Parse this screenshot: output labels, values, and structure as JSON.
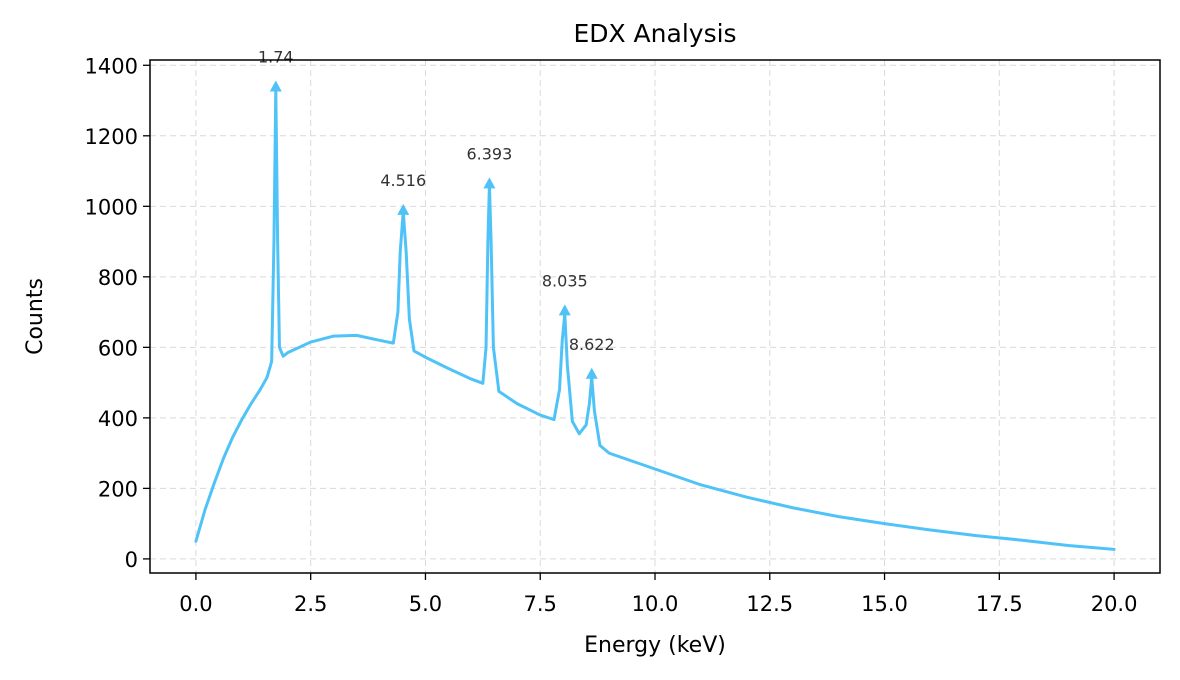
{
  "chart_data": {
    "type": "line",
    "title": "EDX Analysis",
    "xlabel": "Energy (keV)",
    "ylabel": "Counts",
    "xlim": [
      -1,
      21
    ],
    "ylim": [
      -40,
      1415
    ],
    "grid": true,
    "line_color": "#4fc3f7",
    "xticks": [
      0.0,
      2.5,
      5.0,
      7.5,
      10.0,
      12.5,
      15.0,
      17.5,
      20.0
    ],
    "xtick_labels": [
      "0.0",
      "2.5",
      "5.0",
      "7.5",
      "10.0",
      "12.5",
      "15.0",
      "17.5",
      "20.0"
    ],
    "yticks": [
      0,
      200,
      400,
      600,
      800,
      1000,
      1200,
      1400
    ],
    "ytick_labels": [
      "0",
      "200",
      "400",
      "600",
      "800",
      "1000",
      "1200",
      "1400"
    ],
    "series": [
      {
        "name": "Spectrum",
        "x": [
          0.0,
          0.2,
          0.4,
          0.6,
          0.8,
          1.0,
          1.2,
          1.4,
          1.55,
          1.65,
          1.7,
          1.74,
          1.78,
          1.82,
          1.9,
          2.0,
          2.5,
          3.0,
          3.5,
          4.0,
          4.3,
          4.4,
          4.45,
          4.516,
          4.58,
          4.65,
          4.75,
          5.0,
          5.5,
          6.0,
          6.25,
          6.32,
          6.36,
          6.393,
          6.43,
          6.48,
          6.6,
          7.0,
          7.5,
          7.8,
          7.92,
          7.98,
          8.035,
          8.09,
          8.2,
          8.35,
          8.5,
          8.57,
          8.622,
          8.68,
          8.8,
          9.0,
          10.0,
          11.0,
          12.0,
          13.0,
          14.0,
          15.0,
          16.0,
          17.0,
          18.0,
          19.0,
          20.0
        ],
        "y": [
          50,
          140,
          215,
          285,
          345,
          395,
          440,
          480,
          515,
          560,
          900,
          1330,
          900,
          600,
          575,
          585,
          615,
          632,
          634,
          620,
          612,
          700,
          870,
          985,
          870,
          680,
          590,
          572,
          540,
          510,
          498,
          600,
          900,
          1060,
          900,
          600,
          475,
          440,
          408,
          395,
          480,
          620,
          695,
          550,
          390,
          355,
          380,
          440,
          515,
          420,
          322,
          300,
          255,
          210,
          175,
          145,
          120,
          100,
          82,
          66,
          53,
          38,
          27
        ]
      }
    ],
    "peaks": [
      {
        "x": 1.74,
        "y": 1340,
        "label": "1.74"
      },
      {
        "x": 4.516,
        "y": 990,
        "label": "4.516"
      },
      {
        "x": 6.393,
        "y": 1065,
        "label": "6.393"
      },
      {
        "x": 8.035,
        "y": 705,
        "label": "8.035"
      },
      {
        "x": 8.622,
        "y": 525,
        "label": "8.622"
      }
    ]
  }
}
